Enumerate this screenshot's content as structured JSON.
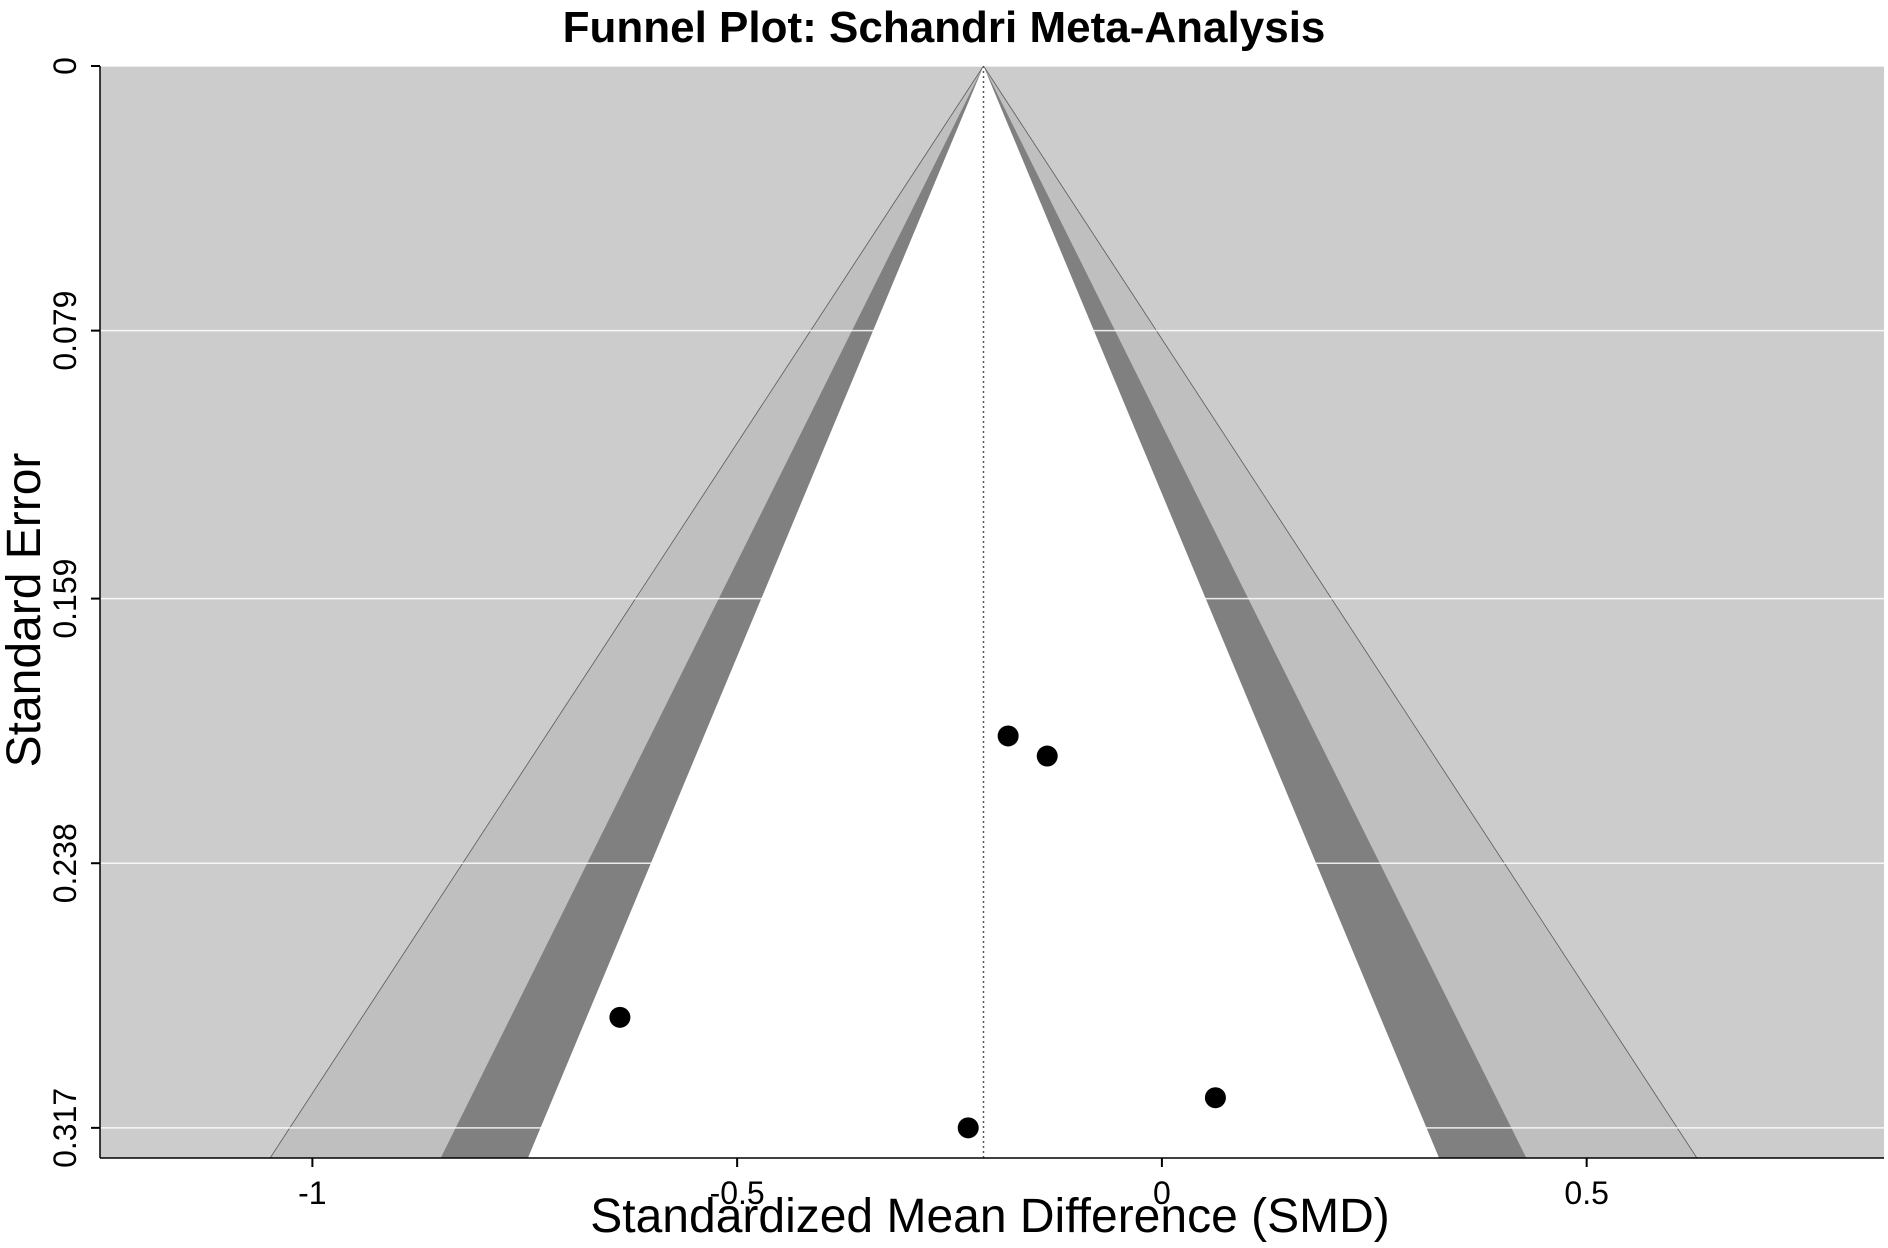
{
  "chart_data": {
    "type": "scatter",
    "subtype": "funnel",
    "title": "Funnel Plot: Schandri Meta-Analysis",
    "xlabel": "Standardized Mean Difference (SMD)",
    "ylabel": "Standard Error",
    "xlim": [
      -1.25,
      0.85
    ],
    "ylim": [
      0.326,
      0
    ],
    "y_inverted": true,
    "x_ticks": [
      -1,
      -0.5,
      0,
      0.5
    ],
    "x_tick_labels": [
      "-1",
      "-0.5",
      "0",
      "0.5"
    ],
    "y_ticks": [
      0,
      0.079,
      0.159,
      0.238,
      0.317
    ],
    "y_tick_labels": [
      "0",
      "0.079",
      "0.159",
      "0.238",
      "0.317"
    ],
    "pooled_estimate": -0.21,
    "contour_z": [
      1.645,
      1.96,
      2.576
    ],
    "grid": true,
    "colors": {
      "background": "#cccccc",
      "band_outer": "#bfbfbf",
      "band_middle": "#808080",
      "funnel_inner": "#ffffff",
      "gridline": "#ffffff",
      "points": "#000000"
    },
    "points": [
      {
        "x": -0.181,
        "y": 0.2
      },
      {
        "x": -0.135,
        "y": 0.206
      },
      {
        "x": -0.638,
        "y": 0.284
      },
      {
        "x": -0.228,
        "y": 0.317
      },
      {
        "x": 0.063,
        "y": 0.308
      }
    ]
  }
}
